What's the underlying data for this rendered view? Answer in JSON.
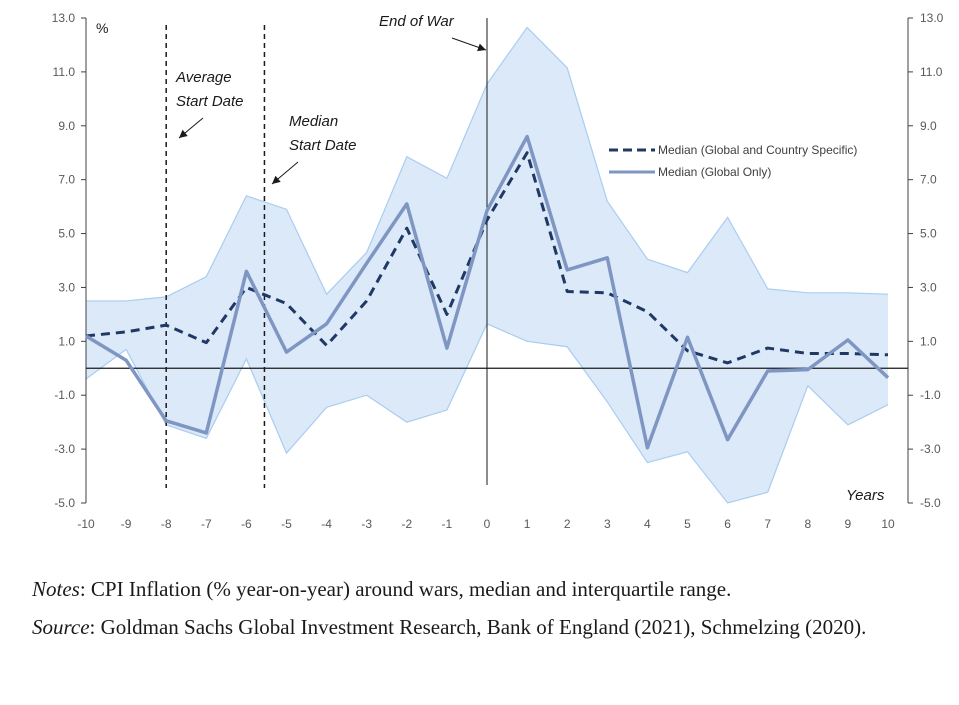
{
  "chart_data": {
    "type": "line",
    "ylabel": "%",
    "xlabel": "Years",
    "x": [
      -10,
      -9,
      -8,
      -7,
      -6,
      -5,
      -4,
      -3,
      -2,
      -1,
      0,
      1,
      2,
      3,
      4,
      5,
      6,
      7,
      8,
      9,
      10
    ],
    "ylim": [
      -5,
      13
    ],
    "xlim": [
      -10,
      10
    ],
    "yticks": [
      "13.0",
      "11.0",
      "9.0",
      "7.0",
      "5.0",
      "3.0",
      "1.0",
      "-1.0",
      "-3.0",
      "-5.0"
    ],
    "xticks": [
      "-10",
      "-9",
      "-8",
      "-7",
      "-6",
      "-5",
      "-4",
      "-3",
      "-2",
      "-1",
      "0",
      "1",
      "2",
      "3",
      "4",
      "5",
      "6",
      "7",
      "8",
      "9",
      "10"
    ],
    "series": [
      {
        "name": "Median (Global and Country Specific)",
        "style": "dashed",
        "color": "#1f3864",
        "values": [
          1.2,
          1.35,
          1.6,
          0.95,
          3.0,
          2.4,
          0.85,
          2.5,
          5.2,
          2.0,
          5.5,
          8.0,
          2.85,
          2.8,
          2.1,
          0.65,
          0.2,
          0.75,
          0.55,
          0.55,
          0.5
        ]
      },
      {
        "name": "Median (Global Only)",
        "style": "solid",
        "color": "#7f96c2",
        "values": [
          1.2,
          0.3,
          -1.95,
          -2.4,
          3.6,
          0.6,
          1.65,
          3.9,
          6.1,
          0.75,
          5.85,
          8.6,
          3.65,
          4.1,
          -2.95,
          1.15,
          -2.65,
          -0.1,
          -0.05,
          1.05,
          -0.35
        ]
      }
    ],
    "band": {
      "color": "#dbe9f9",
      "edge_color": "#a9cdf0",
      "upper": [
        2.5,
        2.5,
        2.65,
        3.4,
        6.4,
        5.9,
        2.75,
        4.3,
        7.85,
        7.05,
        10.55,
        12.65,
        11.15,
        6.2,
        4.05,
        3.55,
        5.6,
        2.95,
        2.8,
        2.8,
        2.75
      ],
      "lower": [
        -0.4,
        0.7,
        -2.1,
        -2.6,
        0.35,
        -3.15,
        -1.45,
        -1.0,
        -2.0,
        -1.55,
        1.65,
        1.0,
        0.8,
        -1.25,
        -3.5,
        -3.1,
        -5.0,
        -4.6,
        -0.65,
        -2.1,
        -1.35
      ]
    },
    "vlines": [
      {
        "x": -8,
        "style": "dashed",
        "label": [
          "Average",
          "Start Date"
        ]
      },
      {
        "x": -5.55,
        "style": "dashed",
        "label": [
          "Median",
          "Start Date"
        ]
      },
      {
        "x": 0,
        "style": "solid",
        "label": [
          "End of War"
        ]
      }
    ],
    "legend_position": "right"
  },
  "notes": {
    "notes_label": "Notes",
    "notes_text": ": CPI Inflation (% year-on-year) around wars, median and interquartile range.",
    "source_label": "Source",
    "source_text": ": Goldman Sachs Global Investment Research, Bank of England (2021), Schmelzing (2020)."
  }
}
